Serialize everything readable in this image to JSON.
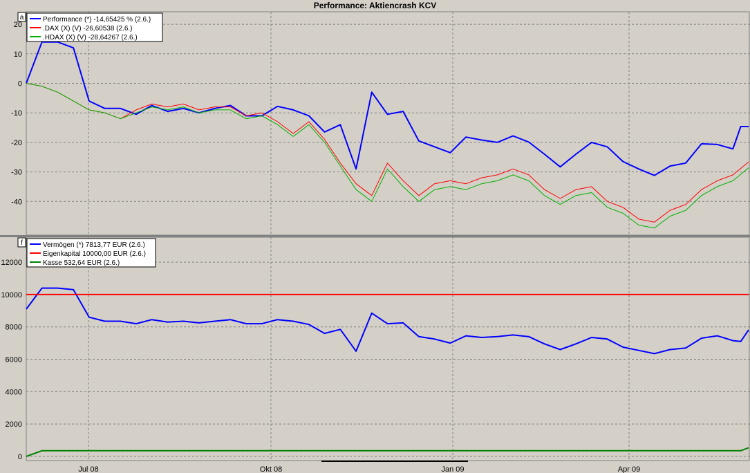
{
  "title": "Performance: Aktiencrash KCV",
  "colors": {
    "blue": "#0000ff",
    "red": "#ff0000",
    "green": "#008000",
    "green_light": "#00b000",
    "grid": "#808080",
    "bg": "#d4d0c8"
  },
  "chart_data": [
    {
      "type": "line",
      "panel_label": "a",
      "ylim": [
        -50,
        24
      ],
      "yticks": [
        20,
        10,
        0,
        -10,
        -20,
        -30,
        -40
      ],
      "grid": true,
      "legend_position": "top-left",
      "x_tick_labels": [
        "Jul 08",
        "Okt 08",
        "Jan 09",
        "Apr 09"
      ],
      "series": [
        {
          "name": "Performance (*) -14,65425 % (2.6.)",
          "color": "#0000ff",
          "x": [
            0,
            10,
            20,
            30,
            40,
            50,
            60,
            70,
            80,
            90,
            100,
            110,
            120,
            130,
            140,
            150,
            160,
            170,
            180,
            190,
            200,
            210,
            220,
            230,
            240,
            250,
            260,
            270,
            280,
            290,
            300,
            310,
            320,
            330,
            340,
            350,
            360,
            370,
            380,
            390,
            400,
            410,
            420,
            430,
            440,
            450,
            455,
            460
          ],
          "y": [
            0,
            14,
            14,
            12,
            -6,
            -8.5,
            -8.5,
            -10.5,
            -7.5,
            -9.5,
            -8.5,
            -10,
            -8.5,
            -7.5,
            -11,
            -11,
            -7.8,
            -9,
            -11,
            -16.5,
            -14,
            -29,
            -3,
            -10.5,
            -9.5,
            -19.5,
            -21.5,
            -23.5,
            -18.2,
            -19.2,
            -20,
            -17.8,
            -19.9,
            -24,
            -28.3,
            -24,
            -20,
            -21.5,
            -26.5,
            -29,
            -31.2,
            -28,
            -27,
            -20.5,
            -20.7,
            -22.2,
            -14.65,
            -14.65
          ]
        },
        {
          "name": ".DAX (X) (V) -26,60538 (2.6.)",
          "color": "#ff0000",
          "x": [
            0,
            10,
            20,
            30,
            40,
            50,
            60,
            70,
            80,
            90,
            100,
            110,
            120,
            130,
            140,
            150,
            160,
            170,
            180,
            190,
            200,
            210,
            220,
            230,
            240,
            250,
            260,
            270,
            280,
            290,
            300,
            310,
            320,
            330,
            340,
            350,
            360,
            370,
            380,
            390,
            400,
            410,
            420,
            430,
            440,
            450,
            460
          ],
          "y": [
            0,
            -1,
            -3,
            -6,
            -9,
            -10,
            -12,
            -9,
            -7,
            -8,
            -7,
            -9,
            -8,
            -8,
            -11,
            -10,
            -13,
            -17,
            -13,
            -19,
            -27,
            -34,
            -38,
            -27,
            -33,
            -38,
            -34,
            -33,
            -34,
            -32,
            -31,
            -29,
            -31,
            -36,
            -39,
            -36,
            -35,
            -40,
            -42,
            -46,
            -47,
            -43,
            -41,
            -36,
            -33,
            -31,
            -26.6
          ]
        },
        {
          "name": ".HDAX (X) (V) -28,64267 (2.6.)",
          "color": "#00b000",
          "x": [
            0,
            10,
            20,
            30,
            40,
            50,
            60,
            70,
            80,
            90,
            100,
            110,
            120,
            130,
            140,
            150,
            160,
            170,
            180,
            190,
            200,
            210,
            220,
            230,
            240,
            250,
            260,
            270,
            280,
            290,
            300,
            310,
            320,
            330,
            340,
            350,
            360,
            370,
            380,
            390,
            400,
            410,
            420,
            430,
            440,
            450,
            460
          ],
          "y": [
            0,
            -1,
            -3,
            -6,
            -9,
            -10,
            -12,
            -10,
            -8,
            -9,
            -8,
            -10,
            -9,
            -9,
            -12,
            -11,
            -14,
            -18,
            -14,
            -20,
            -28,
            -36,
            -40,
            -29,
            -35,
            -40,
            -36,
            -35,
            -36,
            -34,
            -33,
            -31,
            -33,
            -38,
            -41,
            -38,
            -37,
            -42,
            -44,
            -48,
            -49,
            -45,
            -43,
            -38,
            -35,
            -33,
            -28.6
          ]
        }
      ]
    },
    {
      "type": "line",
      "panel_label": "f",
      "ylim": [
        0,
        13500
      ],
      "yticks": [
        12000,
        10000,
        8000,
        6000,
        4000,
        2000,
        0
      ],
      "grid": true,
      "legend_position": "top-left",
      "x_tick_labels": [
        "Jul 08",
        "Okt 08",
        "Jan 09",
        "Apr 09"
      ],
      "series": [
        {
          "name": "Vermögen (*) 7813,77 EUR (2.6.)",
          "color": "#0000ff",
          "x": [
            0,
            10,
            20,
            30,
            40,
            50,
            60,
            70,
            80,
            90,
            100,
            110,
            120,
            130,
            140,
            150,
            160,
            170,
            180,
            190,
            200,
            210,
            220,
            230,
            240,
            250,
            260,
            270,
            280,
            290,
            300,
            310,
            320,
            330,
            340,
            350,
            360,
            370,
            380,
            390,
            400,
            410,
            420,
            430,
            440,
            450,
            455,
            460
          ],
          "y": [
            9100,
            10400,
            10400,
            10300,
            8600,
            8350,
            8350,
            8200,
            8450,
            8300,
            8350,
            8250,
            8350,
            8450,
            8200,
            8200,
            8450,
            8350,
            8150,
            7600,
            7850,
            6500,
            8850,
            8200,
            8250,
            7400,
            7250,
            7000,
            7450,
            7350,
            7400,
            7500,
            7400,
            6950,
            6600,
            6950,
            7350,
            7250,
            6750,
            6550,
            6350,
            6600,
            6700,
            7300,
            7450,
            7150,
            7100,
            7813.77
          ]
        },
        {
          "name": "Eigenkapital 10000,00 EUR (2.6.)",
          "color": "#ff0000",
          "x": [
            0,
            460
          ],
          "y": [
            10000,
            10000
          ]
        },
        {
          "name": "Kasse 532,64 EUR (2.6.)",
          "color": "#008000",
          "x": [
            0,
            10,
            20,
            450,
            455,
            460
          ],
          "y": [
            0,
            350,
            350,
            350,
            350,
            532.64
          ]
        }
      ]
    }
  ]
}
